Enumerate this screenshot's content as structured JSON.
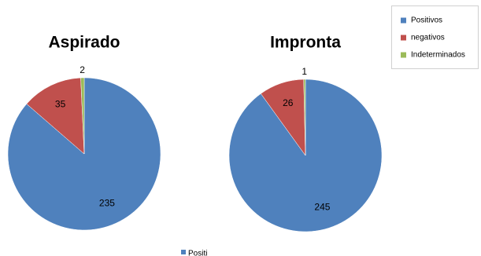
{
  "chart_data": [
    {
      "type": "pie",
      "title": "Aspirado",
      "values": [
        235,
        35,
        2
      ]
    },
    {
      "type": "pie",
      "title": "Impronta",
      "values": [
        245,
        26,
        1
      ]
    }
  ],
  "legend": {
    "position": "top-right",
    "items": [
      {
        "name": "Positivos",
        "color": "#4f81bd"
      },
      {
        "name": "negativos",
        "color": "#c0504d"
      },
      {
        "name": "Indeterminados",
        "color": "#9bbb59"
      }
    ]
  },
  "cropped_legend": {
    "name": "Positi",
    "color": "#4f81bd"
  }
}
